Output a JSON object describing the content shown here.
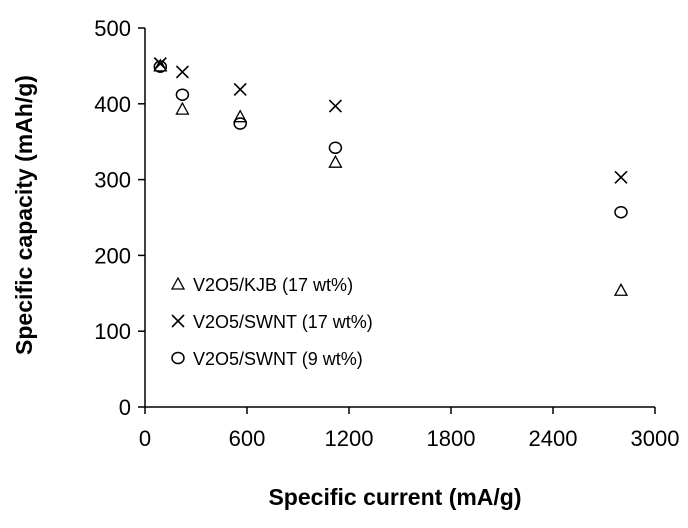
{
  "chart_data": {
    "type": "scatter",
    "title": "",
    "xlabel": "Specific current (mA/g)",
    "ylabel": "Specific capacity (mAh/g)",
    "xlim": [
      0,
      3000
    ],
    "ylim": [
      0,
      500
    ],
    "xticks": [
      0,
      600,
      1200,
      1800,
      2400,
      3000
    ],
    "yticks": [
      0,
      100,
      200,
      300,
      400,
      500
    ],
    "grid": false,
    "legend_position": "bottom-left",
    "series": [
      {
        "name": "V2O5/KJB (17 wt%)",
        "marker": "triangle",
        "x": [
          90,
          220,
          560,
          1120,
          2800
        ],
        "y": [
          450,
          393,
          383,
          323,
          154
        ]
      },
      {
        "name": "V2O5/SWNT (17 wt%)",
        "marker": "x",
        "x": [
          90,
          220,
          560,
          1120,
          2800
        ],
        "y": [
          453,
          442,
          419,
          397,
          303
        ]
      },
      {
        "name": "V2O5/SWNT (9 wt%)",
        "marker": "circle",
        "x": [
          90,
          220,
          560,
          1120,
          2800
        ],
        "y": [
          449,
          412,
          374,
          342,
          257
        ]
      }
    ]
  }
}
